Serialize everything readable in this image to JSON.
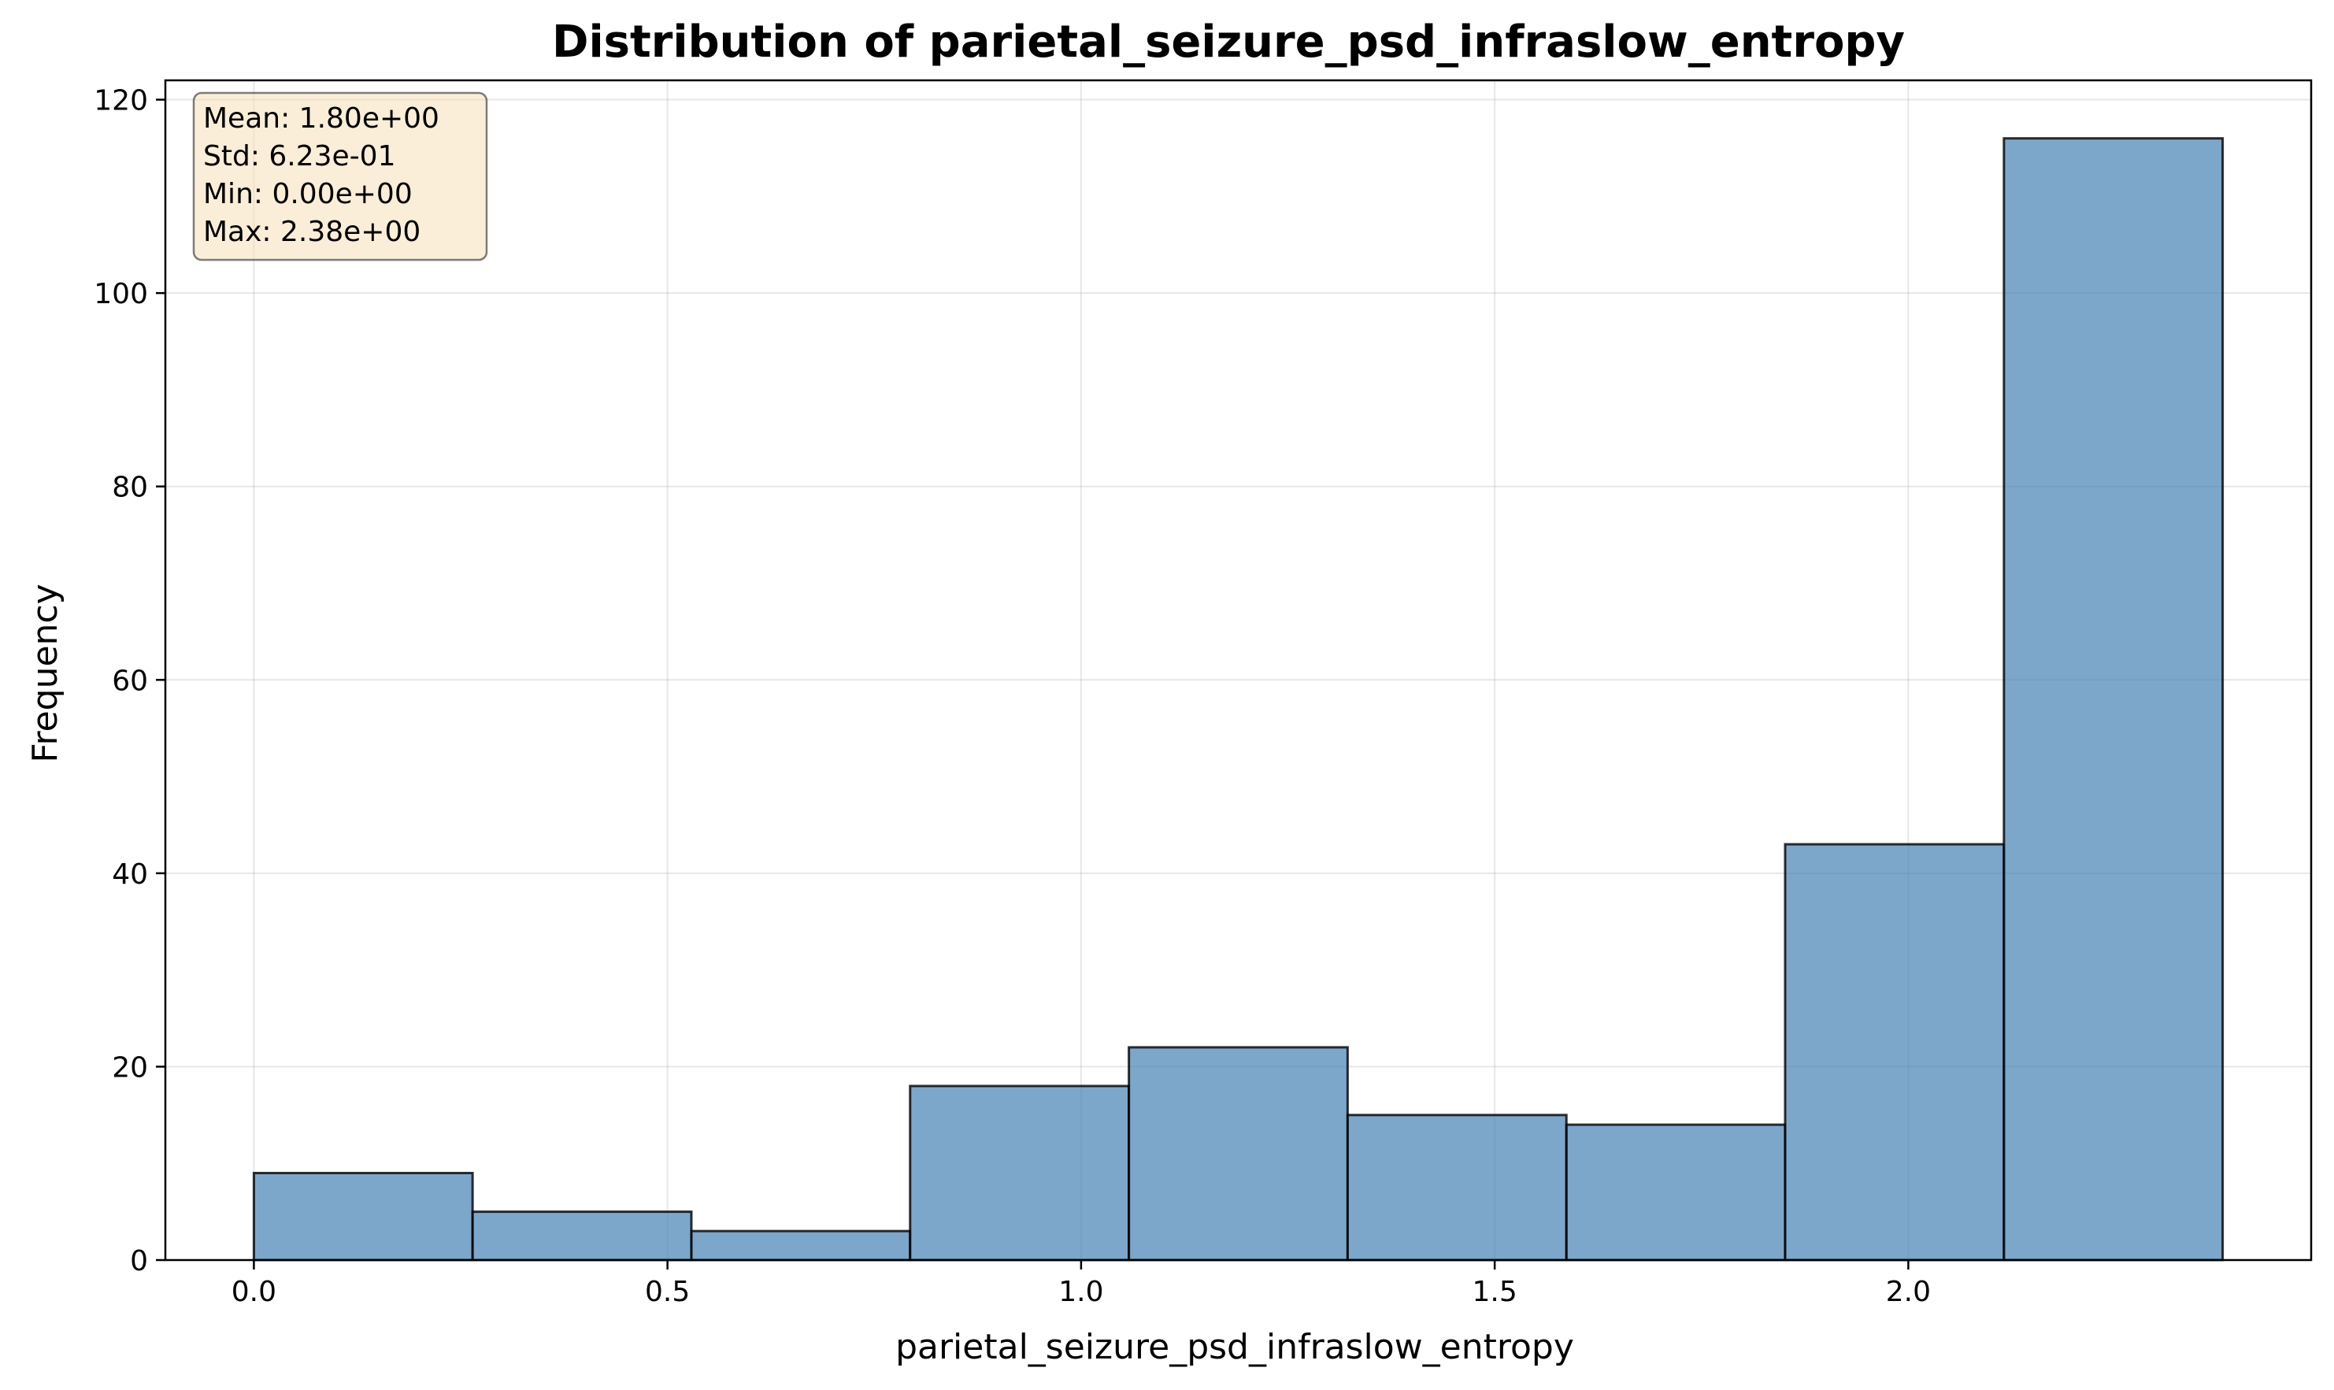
{
  "chart_data": {
    "type": "bar",
    "title": "Distribution of parietal_seizure_psd_infraslow_entropy",
    "xlabel": "parietal_seizure_psd_infraslow_entropy",
    "ylabel": "Frequency",
    "bins": [
      {
        "x0": 0.0,
        "x1": 0.2644,
        "count": 9
      },
      {
        "x0": 0.2644,
        "x1": 0.5289,
        "count": 5
      },
      {
        "x0": 0.5289,
        "x1": 0.7933,
        "count": 3
      },
      {
        "x0": 0.7933,
        "x1": 1.0578,
        "count": 18
      },
      {
        "x0": 1.0578,
        "x1": 1.3222,
        "count": 22
      },
      {
        "x0": 1.3222,
        "x1": 1.5867,
        "count": 15
      },
      {
        "x0": 1.5867,
        "x1": 1.8511,
        "count": 14
      },
      {
        "x0": 1.8511,
        "x1": 2.1156,
        "count": 43
      },
      {
        "x0": 2.1156,
        "x1": 2.38,
        "count": 116
      }
    ],
    "xlim": [
      -0.107,
      2.487
    ],
    "ylim": [
      0,
      122
    ],
    "xticks": [
      0.0,
      0.5,
      1.0,
      1.5,
      2.0
    ],
    "xtick_labels": [
      "0.0",
      "0.5",
      "1.0",
      "1.5",
      "2.0"
    ],
    "yticks": [
      0,
      20,
      40,
      60,
      80,
      100,
      120
    ],
    "ytick_labels": [
      "0",
      "20",
      "40",
      "60",
      "80",
      "100",
      "120"
    ],
    "grid": true,
    "bar_color": "#4682b4",
    "bar_edge_color": "#000000",
    "stats_box": {
      "lines": [
        "Mean: 1.80e+00",
        "Std: 6.23e-01",
        "Min: 0.00e+00",
        "Max: 2.38e+00"
      ],
      "background": "#f5deb3",
      "placement": "top-left"
    }
  }
}
